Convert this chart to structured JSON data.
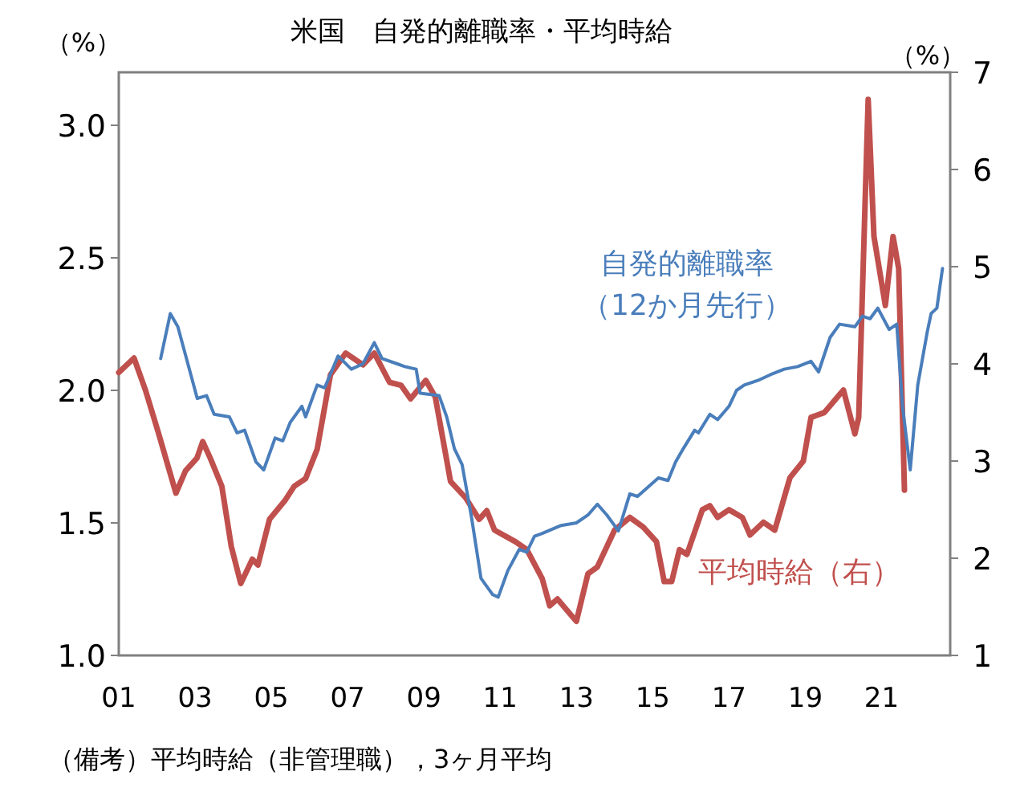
{
  "chart_data": {
    "type": "line",
    "title": "米国　自発的離職率・平均時給",
    "xlim": [
      2001,
      2022.8
    ],
    "xticks": [
      {
        "value": 2001,
        "label": "01"
      },
      {
        "value": 2003,
        "label": "03"
      },
      {
        "value": 2005,
        "label": "05"
      },
      {
        "value": 2007,
        "label": "07"
      },
      {
        "value": 2009,
        "label": "09"
      },
      {
        "value": 2011,
        "label": "11"
      },
      {
        "value": 2013,
        "label": "13"
      },
      {
        "value": 2015,
        "label": "15"
      },
      {
        "value": 2017,
        "label": "17"
      },
      {
        "value": 2019,
        "label": "19"
      },
      {
        "value": 2021,
        "label": "21"
      }
    ],
    "ylim": [
      1.0,
      3.2
    ],
    "yticks": [
      {
        "value": 1.0,
        "label": "1.0"
      },
      {
        "value": 1.5,
        "label": "1.5"
      },
      {
        "value": 2.0,
        "label": "2.0"
      },
      {
        "value": 2.5,
        "label": "2.5"
      },
      {
        "value": 3.0,
        "label": "3.0"
      }
    ],
    "y2lim": [
      1,
      7
    ],
    "y2ticks": [
      1,
      2,
      3,
      4,
      5,
      6,
      7
    ],
    "ylabel": "（%）",
    "y2label": "（%）",
    "grid": false,
    "series": [
      {
        "name": "自発的離職率（12か月先行）",
        "color": "#4a7ebb",
        "x": [
          2002.1,
          2002.35,
          2002.55,
          2003.06,
          2003.3,
          2003.5,
          2003.9,
          2004.1,
          2004.3,
          2004.6,
          2004.8,
          2005.1,
          2005.3,
          2005.5,
          2005.8,
          2005.9,
          2006.2,
          2006.4,
          2006.75,
          2007.1,
          2007.4,
          2007.7,
          2007.9,
          2008.3,
          2008.5,
          2008.8,
          2008.9,
          2009.4,
          2009.6,
          2009.8,
          2010.0,
          2010.25,
          2010.5,
          2010.8,
          2010.95,
          2011.2,
          2011.5,
          2011.7,
          2011.9,
          2012.1,
          2012.6,
          2013.0,
          2013.3,
          2013.55,
          2013.8,
          2014.1,
          2014.4,
          2014.6,
          2015.15,
          2015.4,
          2015.6,
          2015.8,
          2016.1,
          2016.2,
          2016.5,
          2016.7,
          2017.0,
          2017.2,
          2017.4,
          2017.8,
          2018.1,
          2018.45,
          2018.8,
          2019.15,
          2019.35,
          2019.65,
          2019.9,
          2020.3,
          2020.5,
          2020.7,
          2020.9,
          2021.2,
          2021.4,
          2021.55,
          2021.75,
          2021.95,
          2022.2,
          2022.3,
          2022.45,
          2022.6
        ],
        "values": [
          2.12,
          2.29,
          2.24,
          1.97,
          1.98,
          1.91,
          1.9,
          1.84,
          1.85,
          1.73,
          1.7,
          1.82,
          1.81,
          1.88,
          1.94,
          1.9,
          2.02,
          2.01,
          2.13,
          2.08,
          2.1,
          2.18,
          2.12,
          2.1,
          2.09,
          2.08,
          1.99,
          1.98,
          1.9,
          1.78,
          1.72,
          1.52,
          1.29,
          1.23,
          1.22,
          1.32,
          1.4,
          1.39,
          1.45,
          1.46,
          1.49,
          1.5,
          1.53,
          1.57,
          1.53,
          1.47,
          1.61,
          1.6,
          1.67,
          1.66,
          1.73,
          1.78,
          1.85,
          1.84,
          1.91,
          1.89,
          1.94,
          2.0,
          2.02,
          2.04,
          2.06,
          2.08,
          2.09,
          2.11,
          2.07,
          2.2,
          2.25,
          2.24,
          2.28,
          2.27,
          2.31,
          2.23,
          2.25,
          1.94,
          1.7,
          2.02,
          2.22,
          2.29,
          2.31,
          2.46
        ]
      },
      {
        "name": "平均時給（右）",
        "color": "#c0504d",
        "axis": "y2",
        "x": [
          2001.0,
          2001.4,
          2001.7,
          2002.05,
          2002.5,
          2002.75,
          2003.05,
          2003.2,
          2003.4,
          2003.7,
          2003.95,
          2004.2,
          2004.5,
          2004.65,
          2004.95,
          2005.35,
          2005.6,
          2005.9,
          2006.2,
          2006.55,
          2006.95,
          2007.4,
          2007.7,
          2008.1,
          2008.4,
          2008.65,
          2009.05,
          2009.3,
          2009.7,
          2010.1,
          2010.45,
          2010.65,
          2010.85,
          2011.4,
          2011.7,
          2012.1,
          2012.3,
          2012.5,
          2013.0,
          2013.3,
          2013.55,
          2014.0,
          2014.4,
          2014.75,
          2015.1,
          2015.3,
          2015.5,
          2015.7,
          2015.9,
          2016.3,
          2016.5,
          2016.7,
          2017.0,
          2017.35,
          2017.55,
          2017.9,
          2018.2,
          2018.6,
          2018.95,
          2019.15,
          2019.5,
          2020.0,
          2020.3,
          2020.4,
          2020.65,
          2020.8,
          2021.1,
          2021.3,
          2021.45,
          2021.6
        ],
        "values": [
          3.91,
          4.06,
          3.73,
          3.28,
          2.67,
          2.9,
          3.03,
          3.2,
          3.03,
          2.74,
          2.12,
          1.74,
          1.99,
          1.93,
          2.4,
          2.59,
          2.74,
          2.82,
          3.12,
          3.89,
          4.11,
          3.99,
          4.11,
          3.81,
          3.78,
          3.64,
          3.83,
          3.66,
          2.79,
          2.62,
          2.4,
          2.49,
          2.29,
          2.17,
          2.09,
          1.79,
          1.51,
          1.58,
          1.35,
          1.84,
          1.91,
          2.29,
          2.42,
          2.32,
          2.17,
          1.76,
          1.76,
          2.09,
          2.04,
          2.5,
          2.54,
          2.42,
          2.5,
          2.42,
          2.24,
          2.37,
          2.29,
          2.83,
          3.0,
          3.45,
          3.5,
          3.73,
          3.28,
          3.45,
          6.72,
          5.31,
          4.6,
          5.31,
          4.98,
          2.7
        ]
      }
    ],
    "annotations": [
      "（備考）平均時給（非管理職），3ヶ月平均"
    ]
  }
}
